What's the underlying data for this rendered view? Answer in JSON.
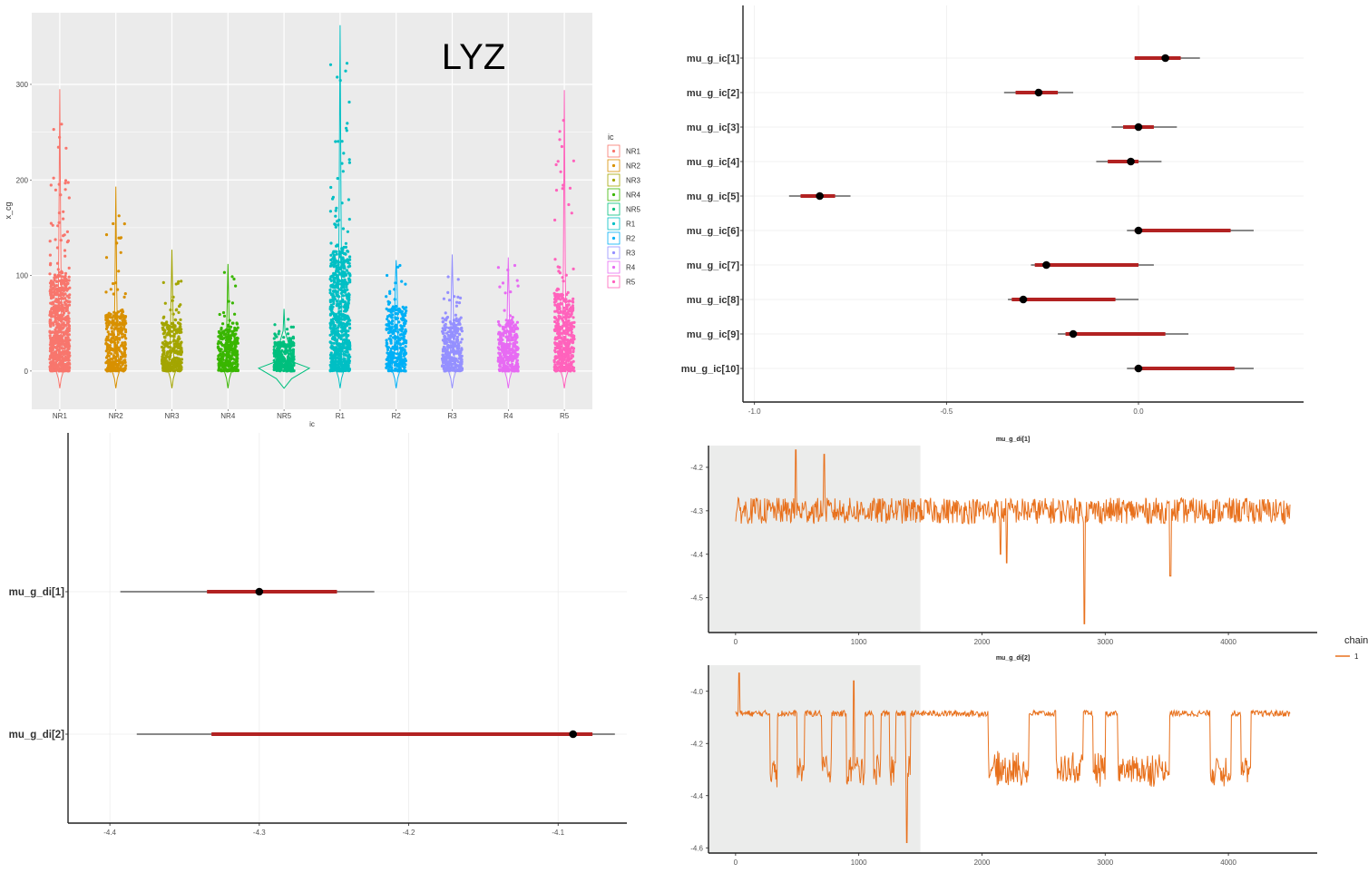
{
  "chart_data": [
    {
      "type": "scatter",
      "subtype": "violin-jitter",
      "title": "LYZ",
      "xlabel": "ic",
      "ylabel": "x_cg",
      "categories": [
        "NR1",
        "NR2",
        "NR3",
        "NR4",
        "NR5",
        "R1",
        "R2",
        "R3",
        "R4",
        "R5"
      ],
      "colors": [
        "#F8766D",
        "#D89000",
        "#A3A500",
        "#39B600",
        "#00BF7D",
        "#00BFC4",
        "#00B0F6",
        "#9590FF",
        "#E76BF3",
        "#FF62BC"
      ],
      "max_values": [
        295,
        193,
        127,
        112,
        65,
        362,
        116,
        122,
        119,
        294
      ],
      "bulk_upper": [
        100,
        60,
        50,
        45,
        30,
        125,
        65,
        55,
        50,
        80
      ],
      "yticks": [
        0,
        100,
        200,
        300
      ],
      "ylim": [
        -40,
        375
      ],
      "grid": true,
      "legend": {
        "title": "ic",
        "position": "right",
        "entries": [
          "NR1",
          "NR2",
          "NR3",
          "NR4",
          "NR5",
          "R1",
          "R2",
          "R3",
          "R4",
          "R5"
        ]
      }
    },
    {
      "type": "interval",
      "subtype": "forest",
      "labels": [
        "mu_g_ic[1]",
        "mu_g_ic[2]",
        "mu_g_ic[3]",
        "mu_g_ic[4]",
        "mu_g_ic[5]",
        "mu_g_ic[6]",
        "mu_g_ic[7]",
        "mu_g_ic[8]",
        "mu_g_ic[9]",
        "mu_g_ic[10]"
      ],
      "point": [
        0.07,
        -0.26,
        0.0,
        -0.02,
        -0.83,
        0.0,
        -0.24,
        -0.3,
        -0.17,
        0.0
      ],
      "inner": [
        [
          -0.01,
          0.11
        ],
        [
          -0.32,
          -0.21
        ],
        [
          -0.04,
          0.04
        ],
        [
          -0.08,
          0.0
        ],
        [
          -0.88,
          -0.79
        ],
        [
          -0.01,
          0.24
        ],
        [
          -0.27,
          0.0
        ],
        [
          -0.33,
          -0.06
        ],
        [
          -0.19,
          0.07
        ],
        [
          -0.01,
          0.25
        ]
      ],
      "outer": [
        [
          -0.01,
          0.16
        ],
        [
          -0.35,
          -0.17
        ],
        [
          -0.07,
          0.1
        ],
        [
          -0.11,
          0.06
        ],
        [
          -0.91,
          -0.75
        ],
        [
          -0.03,
          0.3
        ],
        [
          -0.28,
          0.04
        ],
        [
          -0.34,
          0.0
        ],
        [
          -0.21,
          0.13
        ],
        [
          -0.03,
          0.3
        ]
      ],
      "xticks": [
        -1.0,
        -0.5,
        0.0
      ],
      "xtick_labels": [
        "-1.0",
        "-0.5",
        "0.0"
      ],
      "xlim": [
        -1.03,
        0.43
      ]
    },
    {
      "type": "interval",
      "subtype": "forest",
      "labels": [
        "mu_g_di[1]",
        "mu_g_di[2]"
      ],
      "point": [
        -4.3,
        -4.09
      ],
      "inner": [
        [
          -4.335,
          -4.248
        ],
        [
          -4.332,
          -4.077
        ]
      ],
      "outer": [
        [
          -4.393,
          -4.223
        ],
        [
          -4.382,
          -4.062
        ]
      ],
      "xticks": [
        -4.4,
        -4.3,
        -4.2,
        -4.1
      ],
      "xtick_labels": [
        "-4.4",
        "-4.3",
        "-4.2",
        "-4.1"
      ],
      "xlim": [
        -4.428,
        -4.054
      ]
    },
    {
      "type": "line",
      "subtype": "trace",
      "title": "mu_g_di[1]",
      "x_range": [
        1,
        4500
      ],
      "warmup_end": 1500,
      "center": -4.3,
      "noise": 0.03,
      "dips": [
        [
          2830,
          -4.56
        ],
        [
          2200,
          -4.42
        ],
        [
          3530,
          -4.45
        ],
        [
          2150,
          -4.4
        ]
      ],
      "spikes": [
        [
          490,
          -4.16
        ],
        [
          720,
          -4.17
        ]
      ],
      "xticks": [
        0,
        1000,
        2000,
        3000,
        4000
      ],
      "yticks": [
        -4.2,
        -4.3,
        -4.4,
        -4.5
      ],
      "ylim": [
        -4.58,
        -4.15
      ],
      "color": "#E8711D",
      "legend": {
        "title": "chain",
        "entries": [
          "1"
        ],
        "position": "right"
      }
    },
    {
      "type": "line",
      "subtype": "trace",
      "title": "mu_g_di[2]",
      "x_range": [
        1,
        4500
      ],
      "warmup_end": 1500,
      "center": -4.085,
      "noise": 0.012,
      "low_segments": [
        [
          280,
          340
        ],
        [
          500,
          560
        ],
        [
          700,
          780
        ],
        [
          900,
          1050
        ],
        [
          1120,
          1180
        ],
        [
          1250,
          1300
        ],
        [
          1380,
          1420
        ],
        [
          2050,
          2380
        ],
        [
          2600,
          2820
        ],
        [
          2900,
          3000
        ],
        [
          3100,
          3520
        ],
        [
          3850,
          4020
        ],
        [
          4100,
          4180
        ]
      ],
      "low_level": -4.3,
      "spikes": [
        [
          30,
          -3.93
        ],
        [
          960,
          -3.96
        ]
      ],
      "dips": [
        [
          1390,
          -4.58
        ]
      ],
      "xticks": [
        0,
        1000,
        2000,
        3000,
        4000
      ],
      "yticks": [
        -4.0,
        -4.2,
        -4.4,
        -4.6
      ],
      "ylim": [
        -4.62,
        -3.9
      ],
      "color": "#E8711D"
    }
  ]
}
